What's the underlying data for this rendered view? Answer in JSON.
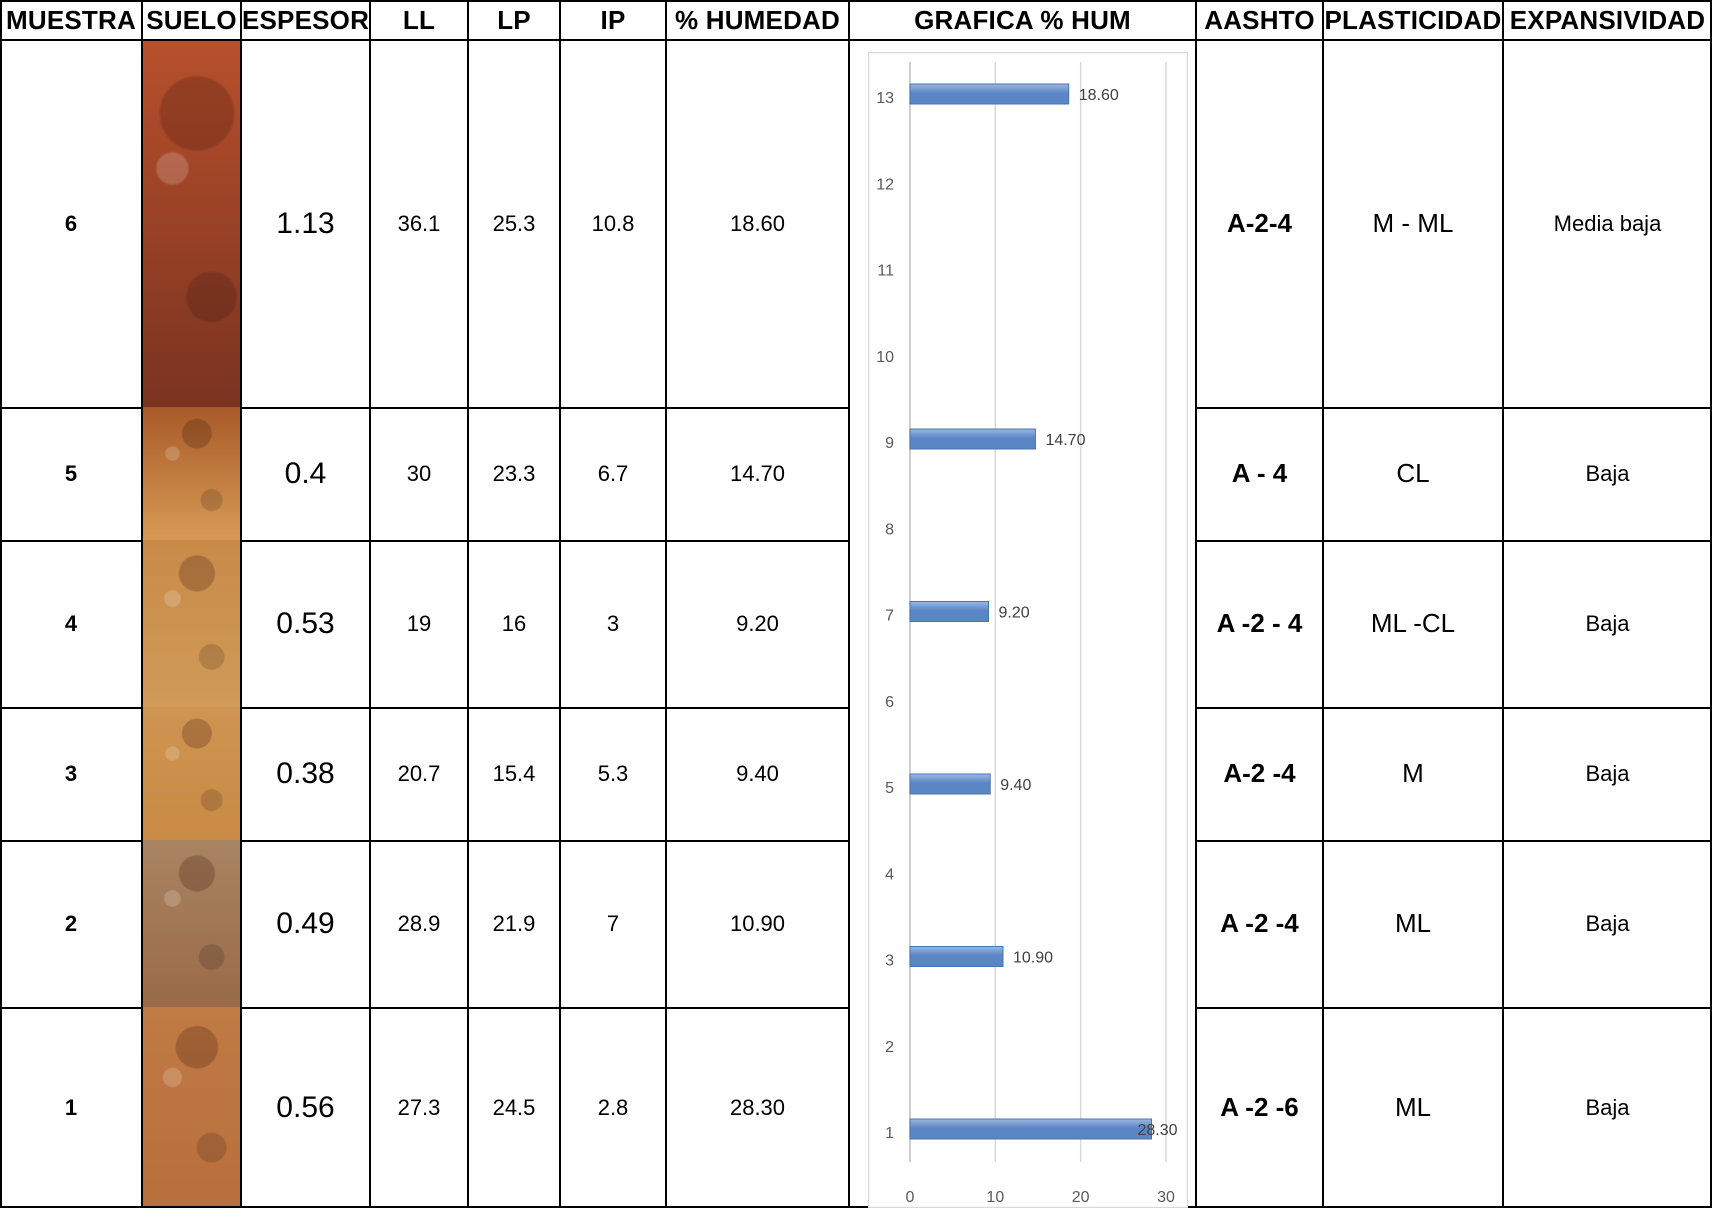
{
  "headers": {
    "muestra": "MUESTRA",
    "suelo": "SUELO",
    "espesor": "ESPESOR",
    "ll": "LL",
    "lp": "LP",
    "ip": "IP",
    "humedad": "% HUMEDAD",
    "grafica": "GRAFICA % HUM",
    "aashto": "AASHTO",
    "plasticidad": "PLASTICIDAD",
    "expansividad": "EXPANSIVIDAD"
  },
  "rows": [
    {
      "muestra": "6",
      "espesor": "1.13",
      "ll": "36.1",
      "lp": "25.3",
      "ip": "10.8",
      "humedad": "18.60",
      "aashto": "A-2-4",
      "plasticidad": "M - ML",
      "expansividad": "Media baja",
      "soil_color_top": "#b8502c",
      "soil_color_bottom": "#7a3320"
    },
    {
      "muestra": "5",
      "espesor": "0.4",
      "ll": "30",
      "lp": "23.3",
      "ip": "6.7",
      "humedad": "14.70",
      "aashto": "A - 4",
      "plasticidad": "CL",
      "expansividad": "Baja",
      "soil_color_top": "#a85a28",
      "soil_color_bottom": "#d79a55"
    },
    {
      "muestra": "4",
      "espesor": "0.53",
      "ll": "19",
      "lp": "16",
      "ip": "3",
      "humedad": "9.20",
      "aashto": "A -2 - 4",
      "plasticidad": "ML -CL",
      "expansividad": "Baja",
      "soil_color_top": "#c98a48",
      "soil_color_bottom": "#d09a58"
    },
    {
      "muestra": "3",
      "espesor": "0.38",
      "ll": "20.7",
      "lp": "15.4",
      "ip": "5.3",
      "humedad": "9.40",
      "aashto": "A-2 -4",
      "plasticidad": "M",
      "expansividad": "Baja",
      "soil_color_top": "#cf9452",
      "soil_color_bottom": "#c98b45"
    },
    {
      "muestra": "2",
      "espesor": "0.49",
      "ll": "28.9",
      "lp": "21.9",
      "ip": "7",
      "humedad": "10.90",
      "aashto": "A -2 -4",
      "plasticidad": "ML",
      "expansividad": "Baja",
      "soil_color_top": "#a98462",
      "soil_color_bottom": "#9a6a48"
    },
    {
      "muestra": "1",
      "espesor": "0.56",
      "ll": "27.3",
      "lp": "24.5",
      "ip": "2.8",
      "humedad": "28.30",
      "aashto": "A -2 -6",
      "plasticidad": "ML",
      "expansividad": "Baja",
      "soil_color_top": "#c07a44",
      "soil_color_bottom": "#b86f3c"
    }
  ],
  "chart_data": {
    "type": "bar",
    "orientation": "horizontal",
    "categories": [
      "1",
      "2",
      "3",
      "4",
      "5",
      "6",
      "7",
      "8",
      "9",
      "10",
      "11",
      "12",
      "13"
    ],
    "values": [
      28.3,
      null,
      10.9,
      null,
      9.4,
      null,
      9.2,
      null,
      14.7,
      null,
      null,
      null,
      18.6
    ],
    "data_labels": {
      "1": "28.30",
      "3": "10.90",
      "5": "9.40",
      "7": "9.20",
      "9": "14.70",
      "13": "18.60"
    },
    "x_ticks": [
      "0",
      "10",
      "20",
      "30"
    ],
    "xlim": [
      0,
      30
    ],
    "grid": true,
    "bar_color": "#5b86c5",
    "bar_color_light": "#9bb8e0"
  }
}
